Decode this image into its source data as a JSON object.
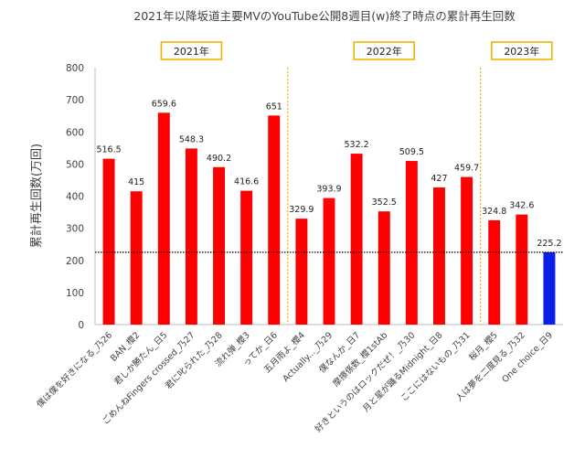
{
  "chart_data": {
    "type": "bar",
    "title": "2021年以降坂道主要MVのYouTube公開8週目(w)終了時点の累計再生回数",
    "ylabel": "累計再生回数(万回)",
    "ylim": [
      0,
      800
    ],
    "yticks": [
      0,
      100,
      200,
      300,
      400,
      500,
      600,
      700,
      800
    ],
    "grid": false,
    "categories": [
      "僕は僕を好きになる_乃26",
      "BAN_櫻2",
      "君しか勝たん_日5",
      "ごめんねFingers crossed_乃27",
      "君に叱られた_乃28",
      "流れ弾_櫻3",
      "ってか_日6",
      "五月雨よ_櫻4",
      "Actually..._乃29",
      "僕なんか_日7",
      "摩擦係数_櫻1stAb",
      "好きというのはロックだぜ！_乃30",
      "月と星が踊るMidnight_日8",
      "ここにはないもの_乃31",
      "桜月_櫻5",
      "人は夢を二度見る_乃32",
      "One choice_日9"
    ],
    "values": [
      516.5,
      415,
      659.6,
      548.3,
      490.2,
      416.6,
      651,
      329.9,
      393.9,
      532.2,
      352.5,
      509.5,
      427,
      459.7,
      324.8,
      342.6,
      225.2
    ],
    "value_labels": [
      "516.5",
      "415",
      "659.6",
      "548.3",
      "490.2",
      "416.6",
      "651",
      "329.9",
      "393.9",
      "532.2",
      "352.5",
      "509.5",
      "427",
      "459.7",
      "324.8",
      "342.6",
      "225.2"
    ],
    "highlight_index": 16,
    "colors": {
      "bar": "#ff0000",
      "highlight": "#0a1fe8",
      "divider": "#f0b400",
      "reference": "#000000"
    },
    "reference_line": 225.2,
    "year_labels": [
      "2021年",
      "2022年",
      "2023年"
    ],
    "year_spans": [
      [
        0,
        6
      ],
      [
        7,
        13
      ],
      [
        14,
        16
      ]
    ]
  }
}
